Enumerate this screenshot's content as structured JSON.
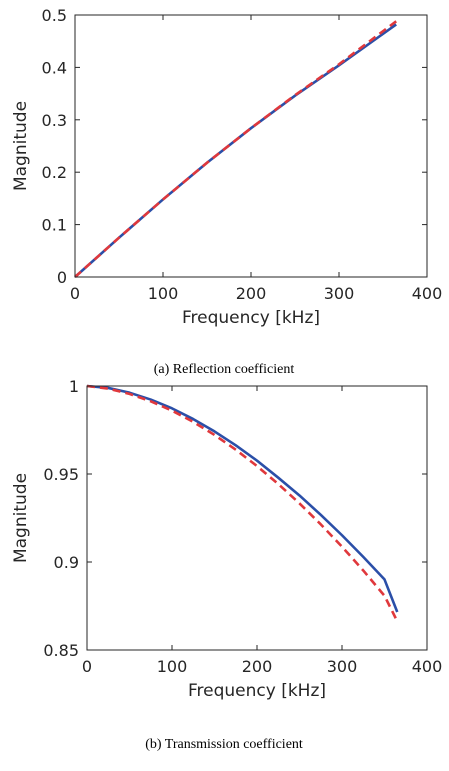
{
  "chart_data": [
    {
      "type": "line",
      "caption": "(a) Reflection coefficient",
      "xlabel": "Frequency [kHz]",
      "ylabel": "Magnitude",
      "xlim": [
        0,
        400
      ],
      "ylim": [
        0,
        0.5
      ],
      "xticks": [
        0,
        100,
        200,
        300,
        400
      ],
      "yticks": [
        0,
        0.1,
        0.2,
        0.3,
        0.4,
        0.5
      ],
      "xtick_labels": [
        "0",
        "100",
        "200",
        "300",
        "400"
      ],
      "ytick_labels": [
        "0",
        "0.1",
        "0.2",
        "0.3",
        "0.4",
        "0.5"
      ],
      "grid": false,
      "series": [
        {
          "color": "#2b4fa8",
          "style": "solid",
          "x": [
            0,
            50,
            100,
            150,
            200,
            250,
            300,
            365
          ],
          "y": [
            0,
            0.075,
            0.148,
            0.218,
            0.284,
            0.346,
            0.404,
            0.482
          ]
        },
        {
          "color": "#e0383c",
          "style": "dashed",
          "x": [
            0,
            50,
            100,
            150,
            200,
            250,
            300,
            365
          ],
          "y": [
            0,
            0.075,
            0.148,
            0.218,
            0.284,
            0.347,
            0.406,
            0.488
          ]
        }
      ]
    },
    {
      "type": "line",
      "caption": "(b) Transmission coefficient",
      "xlabel": "Frequency [kHz]",
      "ylabel": "Magnitude",
      "xlim": [
        0,
        400
      ],
      "ylim": [
        0.85,
        1
      ],
      "xticks": [
        0,
        100,
        200,
        300,
        400
      ],
      "yticks": [
        0.85,
        0.9,
        0.95,
        1
      ],
      "xtick_labels": [
        "0",
        "100",
        "200",
        "300",
        "400"
      ],
      "ytick_labels": [
        "0.85",
        "0.9",
        "0.95",
        "1"
      ],
      "grid": false,
      "series": [
        {
          "color": "#2b4fa8",
          "style": "solid",
          "x": [
            0,
            25,
            50,
            75,
            100,
            125,
            150,
            175,
            200,
            225,
            250,
            275,
            300,
            325,
            350,
            365
          ],
          "y": [
            1.0,
            0.9989,
            0.9962,
            0.9923,
            0.9873,
            0.9812,
            0.9742,
            0.9663,
            0.9576,
            0.9479,
            0.9378,
            0.9268,
            0.9152,
            0.9029,
            0.8901,
            0.8716
          ]
        },
        {
          "color": "#e0383c",
          "style": "dashed",
          "x": [
            0,
            25,
            50,
            75,
            100,
            125,
            150,
            175,
            200,
            225,
            250,
            275,
            300,
            325,
            350,
            365
          ],
          "y": [
            1.0,
            0.9985,
            0.9955,
            0.9913,
            0.986,
            0.9796,
            0.9722,
            0.9638,
            0.9545,
            0.9443,
            0.9333,
            0.9214,
            0.9087,
            0.8952,
            0.8808,
            0.8663
          ]
        }
      ]
    }
  ]
}
